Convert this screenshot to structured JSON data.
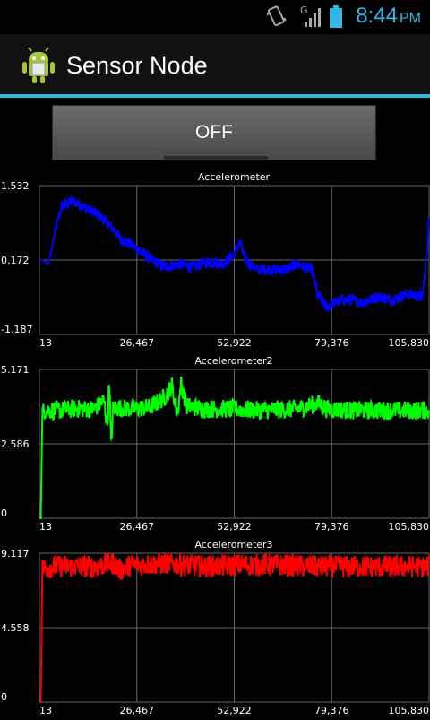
{
  "status_bar": {
    "time": "8:44",
    "ampm": "PM",
    "network": "G",
    "icons": [
      "phone-vibrate-icon",
      "signal-icon",
      "battery-icon"
    ]
  },
  "action_bar": {
    "title": "Sensor Node",
    "icon": "android-app-icon"
  },
  "toggle": {
    "label": "OFF",
    "state": false
  },
  "colors": {
    "accent": "#33b5e5",
    "series1": "#0000ff",
    "series2": "#00ff00",
    "series3": "#ff0000",
    "grid": "#666666"
  },
  "chart_data": [
    {
      "type": "line",
      "title": "Accelerometer",
      "xlabel": "",
      "ylabel": "",
      "y_ticks": [
        "1.532",
        "0.172",
        "-1.187"
      ],
      "x_ticks": [
        "13",
        "26,467",
        "52,922",
        "79,376",
        "105,830"
      ],
      "xlim": [
        13,
        105830
      ],
      "ylim": [
        -1.187,
        1.532
      ],
      "grid": true,
      "legend": "none",
      "series": [
        {
          "color": "#0000ff",
          "x": [
            13,
            2500,
            4000,
            6000,
            9000,
            12000,
            16000,
            20000,
            22000,
            25000,
            28000,
            31000,
            34000,
            38000,
            42000,
            46000,
            50000,
            53000,
            54500,
            55500,
            57000,
            59000,
            63000,
            67000,
            70000,
            74000,
            75500,
            78000,
            80000,
            84000,
            88000,
            92000,
            96000,
            100000,
            104000,
            105200,
            105830
          ],
          "y": [
            0.2,
            0.1,
            0.6,
            1.15,
            1.25,
            1.15,
            1.0,
            0.75,
            0.55,
            0.45,
            0.3,
            0.15,
            0.05,
            0.1,
            0.05,
            0.15,
            0.1,
            0.3,
            0.5,
            0.25,
            0.1,
            0.0,
            0.0,
            0.0,
            0.1,
            0.0,
            -0.45,
            -0.7,
            -0.6,
            -0.55,
            -0.6,
            -0.5,
            -0.55,
            -0.45,
            -0.5,
            0.3,
            1.0
          ],
          "noise": 0.15
        }
      ]
    },
    {
      "type": "line",
      "title": "Accelerometer2",
      "xlabel": "",
      "ylabel": "",
      "y_ticks": [
        "5.171",
        "2.586",
        "0"
      ],
      "x_ticks": [
        "13",
        "26,467",
        "52,922",
        "79,376",
        "105,830"
      ],
      "xlim": [
        13,
        105830
      ],
      "ylim": [
        0,
        5.171
      ],
      "grid": true,
      "legend": "none",
      "series": [
        {
          "color": "#00ff00",
          "x": [
            13,
            400,
            800,
            1200,
            5000,
            10000,
            15000,
            17500,
            18500,
            19000,
            19500,
            20000,
            21000,
            25000,
            30000,
            34000,
            36000,
            37500,
            38500,
            40000,
            45000,
            52000,
            60000,
            70000,
            76000,
            78000,
            85000,
            95000,
            105830
          ],
          "y": [
            0,
            0,
            3.6,
            3.75,
            3.75,
            3.8,
            3.8,
            4.1,
            3.2,
            4.9,
            2.4,
            3.8,
            3.85,
            3.8,
            3.85,
            4.2,
            4.6,
            3.6,
            4.7,
            3.9,
            3.8,
            3.8,
            3.75,
            3.8,
            4.0,
            3.8,
            3.75,
            3.75,
            3.75
          ],
          "noise": 0.25
        }
      ]
    },
    {
      "type": "line",
      "title": "Accelerometer3",
      "xlabel": "",
      "ylabel": "",
      "y_ticks": [
        "9.117",
        "4.558",
        "0"
      ],
      "x_ticks": [
        "13",
        "26,467",
        "52,922",
        "79,376",
        "105,830"
      ],
      "xlim": [
        13,
        105830
      ],
      "ylim": [
        0,
        9.117
      ],
      "grid": true,
      "legend": "none",
      "series": [
        {
          "color": "#ff0000",
          "x": [
            13,
            400,
            800,
            5000,
            15000,
            20000,
            22000,
            25000,
            35000,
            45000,
            55000,
            65000,
            75000,
            80000,
            90000,
            105830
          ],
          "y": [
            0,
            0,
            8.2,
            8.3,
            8.3,
            8.5,
            8.1,
            8.4,
            8.5,
            8.3,
            8.4,
            8.4,
            8.3,
            8.3,
            8.3,
            8.3
          ],
          "noise": 0.3
        }
      ]
    }
  ]
}
